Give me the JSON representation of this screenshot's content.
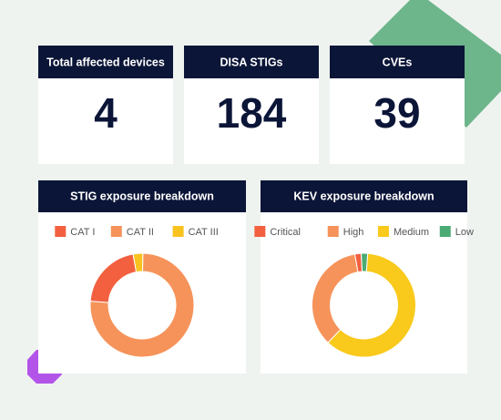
{
  "stats": [
    {
      "label": "Total affected devices",
      "value": "4"
    },
    {
      "label": "DISA STIGs",
      "value": "184"
    },
    {
      "label": "CVEs",
      "value": "39"
    }
  ],
  "charts": [
    {
      "type": "donut",
      "title": "STIG exposure breakdown",
      "categories": [
        "CAT I",
        "CAT II",
        "CAT III"
      ],
      "values": [
        21,
        76,
        3
      ],
      "colors": [
        "#f2603f",
        "#f6935a",
        "#f9c31f"
      ]
    },
    {
      "type": "donut",
      "title": "KEV exposure breakdown",
      "categories": [
        "Critical",
        "High",
        "Medium",
        "Low"
      ],
      "values": [
        2,
        35,
        61,
        2
      ],
      "colors": [
        "#f2603f",
        "#f6935a",
        "#f9c91b",
        "#4caa74"
      ]
    }
  ]
}
